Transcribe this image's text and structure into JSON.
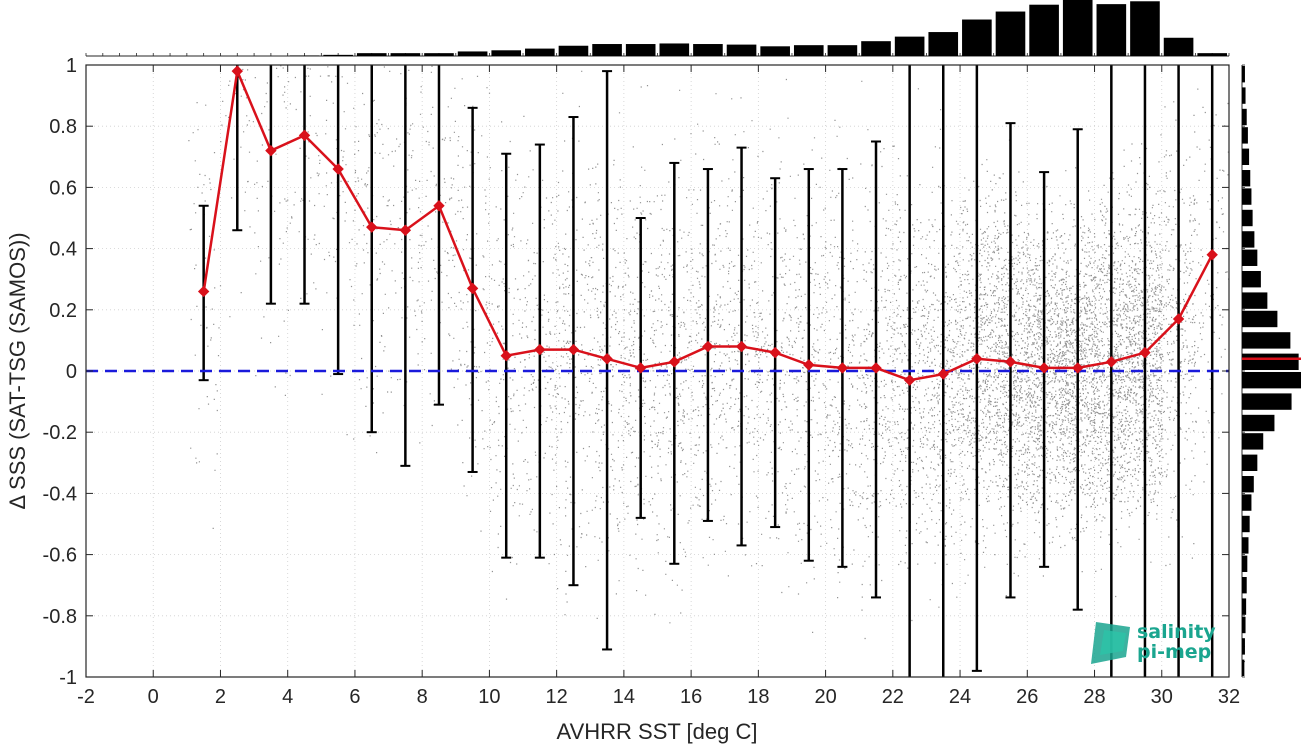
{
  "chart_data": {
    "type": "scatter",
    "xlabel": "AVHRR SST [deg C]",
    "ylabel": "Δ SSS (SAT-TSG (SAMOS))",
    "xlim": [
      -2,
      32
    ],
    "ylim": [
      -1,
      1
    ],
    "x_ticks": [
      -2,
      0,
      2,
      4,
      6,
      8,
      10,
      12,
      14,
      16,
      18,
      20,
      22,
      24,
      26,
      28,
      30,
      32
    ],
    "y_ticks": [
      -1,
      -0.8,
      -0.6,
      -0.4,
      -0.2,
      0,
      0.2,
      0.4,
      0.6,
      0.8,
      1
    ],
    "x_tick_labels": [
      "-2",
      "0",
      "2",
      "4",
      "6",
      "8",
      "10",
      "12",
      "14",
      "16",
      "18",
      "20",
      "22",
      "24",
      "26",
      "28",
      "30",
      "32"
    ],
    "y_tick_labels": [
      "-1",
      "-0.8",
      "-0.6",
      "-0.4",
      "-0.2",
      "0",
      "0.2",
      "0.4",
      "0.6",
      "0.8",
      "1"
    ],
    "grid": true,
    "reference_line": {
      "y": 0,
      "color": "#1a1adb",
      "style": "dashed"
    },
    "colors": {
      "scatter": "#808080",
      "mean_line": "#d9111b",
      "error_bars": "#000000",
      "histogram": "#000000"
    },
    "mean_series": {
      "x": [
        1.5,
        2.5,
        3.5,
        4.5,
        5.5,
        6.5,
        7.5,
        8.5,
        9.5,
        10.5,
        11.5,
        12.5,
        13.5,
        14.5,
        15.5,
        16.5,
        17.5,
        18.5,
        19.5,
        20.5,
        21.5,
        22.5,
        23.5,
        24.5,
        25.5,
        26.5,
        27.5,
        28.5,
        29.5,
        30.5,
        31.5
      ],
      "mean": [
        0.26,
        0.98,
        0.72,
        0.77,
        0.66,
        0.47,
        0.46,
        0.54,
        0.27,
        0.05,
        0.07,
        0.07,
        0.04,
        0.01,
        0.03,
        0.08,
        0.08,
        0.06,
        0.02,
        0.01,
        0.01,
        -0.03,
        -0.01,
        0.04,
        0.03,
        0.01,
        0.01,
        0.03,
        0.06,
        0.17,
        0.38
      ],
      "upper": [
        0.54,
        1.0,
        1.0,
        1.0,
        1.0,
        1.0,
        1.0,
        1.0,
        0.86,
        0.71,
        0.74,
        0.83,
        0.98,
        0.5,
        0.68,
        0.66,
        0.73,
        0.63,
        0.66,
        0.66,
        0.75,
        1.0,
        1.0,
        1.0,
        0.81,
        0.65,
        0.79,
        1.0,
        1.0,
        1.0,
        1.0
      ],
      "lower": [
        -0.03,
        0.46,
        0.22,
        0.22,
        -0.01,
        -0.2,
        -0.31,
        -0.11,
        -0.33,
        -0.61,
        -0.61,
        -0.7,
        -0.91,
        -0.48,
        -0.63,
        -0.49,
        -0.57,
        -0.51,
        -0.62,
        -0.64,
        -0.74,
        -1.0,
        -1.0,
        -0.98,
        -0.74,
        -0.64,
        -0.78,
        -1.0,
        -1.0,
        -1.0,
        -1.0
      ]
    },
    "top_histogram": {
      "bin_centers": [
        -1.5,
        -0.5,
        0.5,
        1.5,
        2.5,
        3.5,
        4.5,
        5.5,
        6.5,
        7.5,
        8.5,
        9.5,
        10.5,
        11.5,
        12.5,
        13.5,
        14.5,
        15.5,
        16.5,
        17.5,
        18.5,
        19.5,
        20.5,
        21.5,
        22.5,
        23.5,
        24.5,
        25.5,
        26.5,
        27.5,
        28.5,
        29.5,
        30.5,
        31.5
      ],
      "relative_counts": [
        0.0,
        0.0,
        0.0,
        0.0,
        0.0,
        0.0,
        0.01,
        0.02,
        0.05,
        0.05,
        0.05,
        0.08,
        0.1,
        0.13,
        0.18,
        0.21,
        0.21,
        0.22,
        0.21,
        0.2,
        0.17,
        0.19,
        0.19,
        0.26,
        0.34,
        0.42,
        0.64,
        0.78,
        0.9,
        1.0,
        0.91,
        0.96,
        0.32,
        0.05
      ]
    },
    "right_histogram": {
      "bin_centers": [
        0.97,
        0.9,
        0.83,
        0.77,
        0.7,
        0.63,
        0.57,
        0.5,
        0.43,
        0.37,
        0.3,
        0.23,
        0.17,
        0.1,
        0.03,
        -0.03,
        -0.1,
        -0.17,
        -0.23,
        -0.3,
        -0.37,
        -0.43,
        -0.5,
        -0.57,
        -0.63,
        -0.7,
        -0.77,
        -0.83,
        -0.9,
        -0.97
      ],
      "relative_counts": [
        0.05,
        0.06,
        0.08,
        0.1,
        0.12,
        0.14,
        0.16,
        0.18,
        0.21,
        0.26,
        0.32,
        0.43,
        0.6,
        0.82,
        0.96,
        1.0,
        0.84,
        0.55,
        0.36,
        0.26,
        0.2,
        0.16,
        0.13,
        0.11,
        0.09,
        0.08,
        0.07,
        0.06,
        0.05,
        0.04
      ],
      "mean_marker_y": 0.04
    }
  },
  "logo": {
    "line1": "salinity",
    "line2": "pi-mep"
  }
}
